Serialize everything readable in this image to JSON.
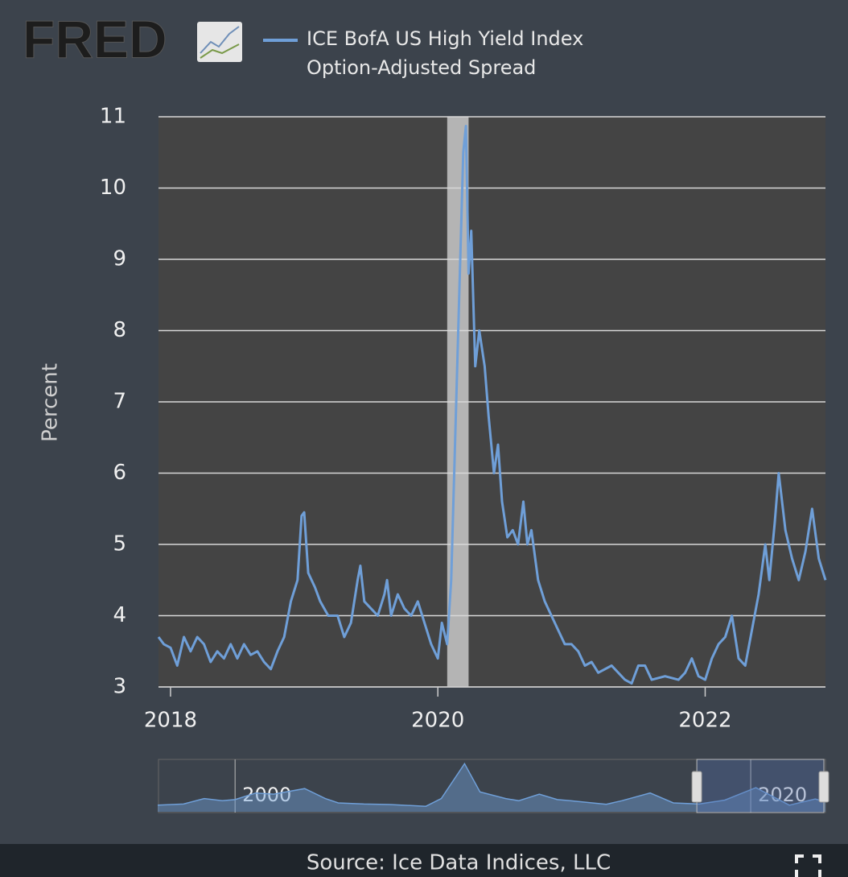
{
  "logo": "FRED",
  "source": "Source: Ice Data Indices, LLC",
  "chart_data": {
    "type": "line",
    "y_label": "Percent",
    "xlim": [
      2017.91,
      2022.9
    ],
    "xticks": [
      2018,
      2020,
      2022
    ],
    "ylim": [
      3,
      11
    ],
    "yticks": [
      3,
      4,
      5,
      6,
      7,
      8,
      9,
      10,
      11
    ],
    "grid": true,
    "legend": "top",
    "recessions": [
      [
        2020.07,
        2020.23
      ]
    ],
    "x": [
      2017.91,
      2017.95,
      2018.0,
      2018.05,
      2018.1,
      2018.15,
      2018.2,
      2018.25,
      2018.3,
      2018.35,
      2018.4,
      2018.45,
      2018.5,
      2018.55,
      2018.6,
      2018.65,
      2018.7,
      2018.75,
      2018.8,
      2018.85,
      2018.9,
      2018.95,
      2018.98,
      2019.0,
      2019.03,
      2019.08,
      2019.12,
      2019.18,
      2019.25,
      2019.3,
      2019.35,
      2019.4,
      2019.42,
      2019.45,
      2019.5,
      2019.55,
      2019.6,
      2019.62,
      2019.65,
      2019.7,
      2019.75,
      2019.8,
      2019.85,
      2019.9,
      2019.95,
      2020.0,
      2020.03,
      2020.07,
      2020.1,
      2020.13,
      2020.16,
      2020.19,
      2020.21,
      2020.23,
      2020.25,
      2020.28,
      2020.31,
      2020.35,
      2020.38,
      2020.42,
      2020.45,
      2020.48,
      2020.52,
      2020.56,
      2020.6,
      2020.64,
      2020.67,
      2020.7,
      2020.75,
      2020.8,
      2020.85,
      2020.9,
      2020.95,
      2021.0,
      2021.05,
      2021.1,
      2021.15,
      2021.2,
      2021.3,
      2021.4,
      2021.45,
      2021.5,
      2021.55,
      2021.6,
      2021.7,
      2021.8,
      2021.85,
      2021.9,
      2021.95,
      2022.0,
      2022.05,
      2022.1,
      2022.15,
      2022.2,
      2022.25,
      2022.3,
      2022.35,
      2022.4,
      2022.45,
      2022.48,
      2022.52,
      2022.55,
      2022.6,
      2022.65,
      2022.7,
      2022.75,
      2022.8,
      2022.85,
      2022.9
    ],
    "series": [
      {
        "name": "ICE BofA US High Yield Index Option-Adjusted Spread",
        "color": "#6f9fd8",
        "values": [
          3.7,
          3.6,
          3.55,
          3.3,
          3.7,
          3.5,
          3.7,
          3.6,
          3.35,
          3.5,
          3.4,
          3.6,
          3.4,
          3.6,
          3.45,
          3.5,
          3.35,
          3.25,
          3.5,
          3.7,
          4.2,
          4.5,
          5.4,
          5.45,
          4.6,
          4.4,
          4.2,
          4.0,
          4.0,
          3.7,
          3.9,
          4.5,
          4.7,
          4.2,
          4.1,
          4.0,
          4.3,
          4.5,
          4.0,
          4.3,
          4.1,
          4.0,
          4.2,
          3.9,
          3.6,
          3.4,
          3.9,
          3.6,
          4.5,
          6.5,
          8.5,
          10.5,
          10.87,
          8.8,
          9.4,
          7.5,
          8.0,
          7.5,
          6.8,
          6.0,
          6.4,
          5.6,
          5.1,
          5.2,
          5.0,
          5.6,
          5.0,
          5.2,
          4.5,
          4.2,
          4.0,
          3.8,
          3.6,
          3.6,
          3.5,
          3.3,
          3.35,
          3.2,
          3.3,
          3.1,
          3.05,
          3.3,
          3.3,
          3.1,
          3.15,
          3.1,
          3.2,
          3.4,
          3.15,
          3.1,
          3.4,
          3.6,
          3.7,
          4.0,
          3.4,
          3.3,
          3.8,
          4.3,
          5.0,
          4.5,
          5.3,
          6.0,
          5.2,
          4.8,
          4.5,
          4.9,
          5.5,
          4.8,
          4.5
        ]
      }
    ],
    "navigator": {
      "xlim": [
        1997.03,
        2022.9
      ],
      "xticks": [
        2000,
        2020
      ],
      "ylim": [
        0,
        23
      ],
      "x": [
        1997,
        1998,
        1998.8,
        1999.5,
        2000,
        2000.8,
        2001.5,
        2002.7,
        2003.5,
        2004,
        2005,
        2006,
        2007.4,
        2008,
        2008.9,
        2009.5,
        2010.5,
        2011,
        2011.8,
        2012.5,
        2013,
        2014.4,
        2015,
        2016.1,
        2017,
        2018,
        2019,
        2020.2,
        2021.5,
        2022.5,
        2022.9
      ],
      "values": [
        3.0,
        3.5,
        6,
        5,
        5.5,
        8.5,
        8,
        10.5,
        6,
        4,
        3.5,
        3.3,
        2.5,
        6,
        21.8,
        9,
        6,
        5,
        8,
        5.5,
        5,
        3.4,
        5,
        8.5,
        4,
        3.5,
        5.3,
        10.9,
        3,
        5.8,
        4.5
      ]
    }
  }
}
